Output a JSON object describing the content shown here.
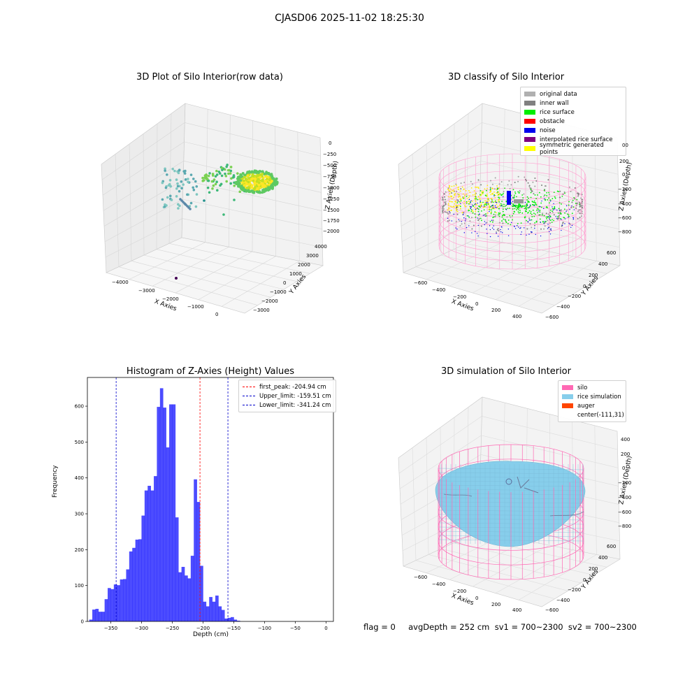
{
  "suptitle": "CJASD06 2025-11-02 18:25:30",
  "footer": "flag = 0     avgDepth = 252 cm  sv1 = 700~2300  sv2 = 700~2300",
  "chart_data": [
    {
      "type": "scatter",
      "title": "3D Plot of Silo Interior(row data)",
      "xlabel": "X Axies",
      "ylabel": "Y Axies",
      "zlabel": "Z Axies (Depth)",
      "x_ticks": [
        "−4000",
        "−3000",
        "−2000",
        "−1000",
        "0"
      ],
      "y_ticks": [
        "4000",
        "3000",
        "2000",
        "1000",
        "0",
        "−1000",
        "−2000",
        "−3000"
      ],
      "z_ticks": [
        "0",
        "−250",
        "−500",
        "−750",
        "−1000",
        "−1250",
        "−1500",
        "−1750",
        "−2000"
      ],
      "colormap": [
        "#440154",
        "#3b528b",
        "#21918c",
        "#5ec962",
        "#fde725"
      ]
    },
    {
      "type": "scatter",
      "title": "3D classify of Silo Interior",
      "xlabel": "X Axies",
      "ylabel": "Y Axies",
      "zlabel": "Z Axies (Depth)",
      "x_ticks": [
        "−600",
        "−400",
        "−200",
        "0",
        "200",
        "400"
      ],
      "y_ticks": [
        "600",
        "400",
        "200",
        "0",
        "−200",
        "−400",
        "−600"
      ],
      "z_ticks": [
        "200",
        "0",
        "−200",
        "−400",
        "−600",
        "−800"
      ],
      "legend": [
        {
          "label": "original data",
          "color": "#b0b0b0"
        },
        {
          "label": "inner wall",
          "color": "#808080"
        },
        {
          "label": "rice surface",
          "color": "#00ee00"
        },
        {
          "label": "obstacle",
          "color": "#ff0000"
        },
        {
          "label": "noise",
          "color": "#0000ee"
        },
        {
          "label": "interpolated rice surface",
          "color": "#800080"
        },
        {
          "label": "symmetric generated points",
          "color": "#ffff00"
        }
      ],
      "top_tick_partial": "00"
    },
    {
      "type": "bar",
      "title": "Histogram of Z-Axies (Height) Values",
      "xlabel": "Depth (cm)",
      "ylabel": "Frequency",
      "xlim": [
        -388,
        12
      ],
      "ylim": [
        0,
        680
      ],
      "bin_width": 5,
      "bin_start": -385,
      "x_ticks": [
        -350,
        -300,
        -250,
        -200,
        -150,
        -100,
        -50,
        0
      ],
      "x_tick_labels": [
        "−350",
        "−300",
        "−250",
        "−200",
        "−150",
        "−100",
        "−50",
        "0"
      ],
      "y_ticks": [
        0,
        100,
        200,
        300,
        400,
        500,
        600
      ],
      "values": [
        5,
        33,
        35,
        27,
        27,
        62,
        93,
        90,
        103,
        101,
        117,
        118,
        145,
        195,
        205,
        228,
        229,
        295,
        365,
        378,
        365,
        405,
        598,
        650,
        596,
        485,
        605,
        605,
        290,
        137,
        152,
        128,
        120,
        183,
        396,
        333,
        155,
        55,
        42,
        68,
        55,
        72,
        42,
        32,
        8,
        10,
        12,
        5,
        2
      ],
      "color": "#0000ff",
      "lines": [
        {
          "label": "first_peak: -204.94 cm",
          "x": -204.94,
          "color": "#ff0000"
        },
        {
          "label": "Upper_limit: -159.51 cm",
          "x": -159.51,
          "color": "#0000cc"
        },
        {
          "label": "Lower_limit: -341.24 cm",
          "x": -341.24,
          "color": "#0000cc"
        }
      ]
    },
    {
      "type": "area",
      "title": "3D simulation of Silo Interior",
      "xlabel": "X Axies",
      "ylabel": "Y Axies",
      "zlabel": "Z Axies (Depth)",
      "x_ticks": [
        "−600",
        "−400",
        "−200",
        "0",
        "200",
        "400"
      ],
      "y_ticks": [
        "600",
        "400",
        "200",
        "0",
        "−200",
        "−400",
        "−600"
      ],
      "z_ticks": [
        "400",
        "200",
        "0",
        "−200",
        "−400",
        "−600",
        "−800"
      ],
      "legend": [
        {
          "label": "silo",
          "color": "#ff69b4"
        },
        {
          "label": "rice simulation",
          "color": "#87ceeb"
        },
        {
          "label": "auger",
          "color": "#ff4500"
        },
        {
          "label": "center(-111,31)",
          "color": "#ffffff"
        }
      ]
    }
  ]
}
